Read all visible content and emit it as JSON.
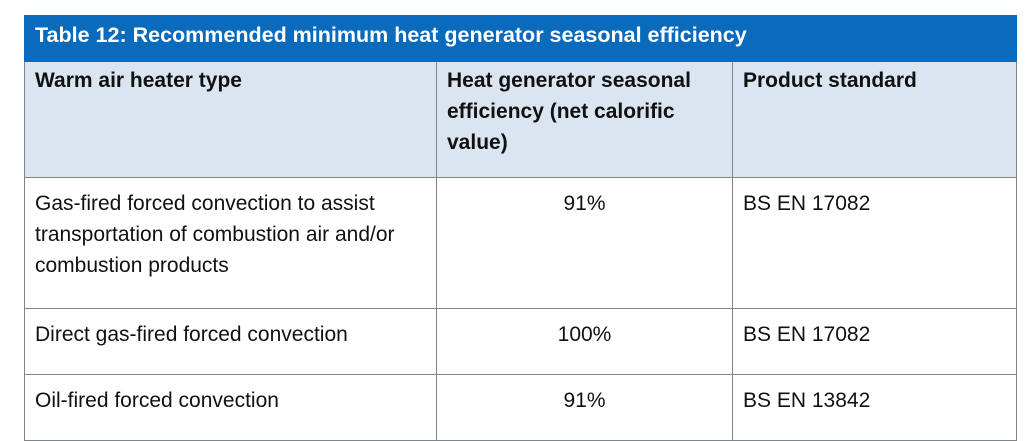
{
  "table": {
    "title": "Table 12: Recommended minimum heat generator seasonal efficiency",
    "headers": [
      "Warm air heater type",
      "Heat generator seasonal efficiency (net calorific value)",
      "Product standard"
    ],
    "rows": [
      {
        "type": "Gas-fired forced convection to assist transportation of combustion air and/or combustion products",
        "efficiency": "91%",
        "standard": "BS EN 17082"
      },
      {
        "type": "Direct gas-fired forced convection",
        "efficiency": "100%",
        "standard": "BS EN 17082"
      },
      {
        "type": "Oil-fired forced convection",
        "efficiency": "91%",
        "standard": "BS EN 13842"
      }
    ]
  },
  "colors": {
    "title_background": "#0a6bbd",
    "header_background": "#dbe5f1",
    "border": "#7f8488"
  }
}
